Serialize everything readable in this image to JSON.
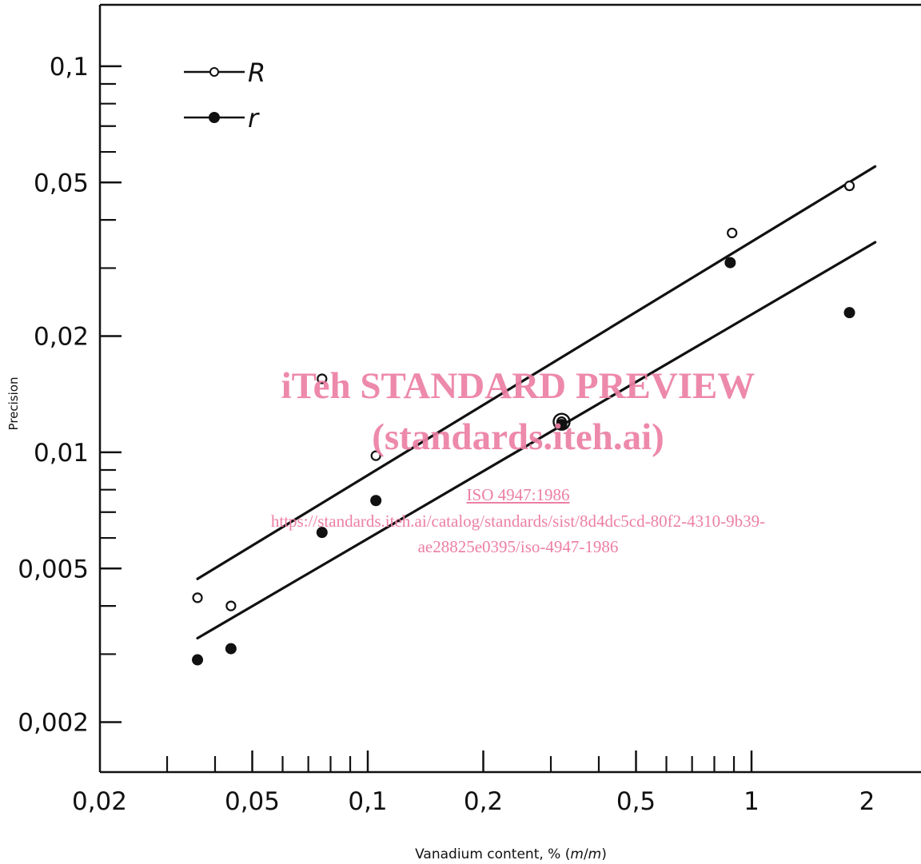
{
  "chart_data": {
    "type": "scatter",
    "xscale": "log",
    "yscale": "log",
    "xlabel": "Vanadium content, % (m/m)",
    "ylabel": "Precision",
    "xlim": [
      0.02,
      2.3
    ],
    "ylim": [
      0.0015,
      0.16
    ],
    "x_ticks_major": [
      0.02,
      0.05,
      0.1,
      0.2,
      0.5,
      1,
      2
    ],
    "x_tick_labels": [
      "0,02",
      "0,05",
      "0,1",
      "0,2",
      "0,5",
      "1",
      "2"
    ],
    "y_ticks_major": [
      0.002,
      0.005,
      0.01,
      0.02,
      0.05,
      0.1
    ],
    "y_tick_labels": [
      "0,002",
      "0,005",
      "0,01",
      "0,02",
      "0,05",
      "0,1"
    ],
    "grid": false,
    "legend_position": "top-left",
    "series": [
      {
        "name": "R",
        "marker": "open-circle",
        "points": [
          {
            "x": 0.036,
            "y": 0.0042
          },
          {
            "x": 0.044,
            "y": 0.004
          },
          {
            "x": 0.076,
            "y": 0.0155
          },
          {
            "x": 0.105,
            "y": 0.0098
          },
          {
            "x": 0.32,
            "y": 0.012
          },
          {
            "x": 0.89,
            "y": 0.037
          },
          {
            "x": 1.8,
            "y": 0.049
          }
        ],
        "fit_line": [
          {
            "x": 0.036,
            "y": 0.0047
          },
          {
            "x": 2.1,
            "y": 0.055
          }
        ]
      },
      {
        "name": "r",
        "marker": "filled-circle",
        "points": [
          {
            "x": 0.036,
            "y": 0.0029
          },
          {
            "x": 0.044,
            "y": 0.0031
          },
          {
            "x": 0.076,
            "y": 0.0062
          },
          {
            "x": 0.105,
            "y": 0.0075
          },
          {
            "x": 0.32,
            "y": 0.0118
          },
          {
            "x": 0.88,
            "y": 0.031
          },
          {
            "x": 1.8,
            "y": 0.023
          }
        ],
        "fit_line": [
          {
            "x": 0.036,
            "y": 0.0033
          },
          {
            "x": 2.1,
            "y": 0.035
          }
        ]
      }
    ]
  },
  "watermark": {
    "line1": "iTeh STANDARD PREVIEW",
    "line2": "(standards.iteh.ai)",
    "line3": "ISO 4947:1986",
    "line4": "https://standards.iteh.ai/catalog/standards/sist/8d4dc5cd-80f2-4310-9b39-",
    "line5": "ae28825e0395/iso-4947-1986"
  },
  "colors": {
    "ink": "#111111",
    "watermark": "#ec7fa3"
  }
}
